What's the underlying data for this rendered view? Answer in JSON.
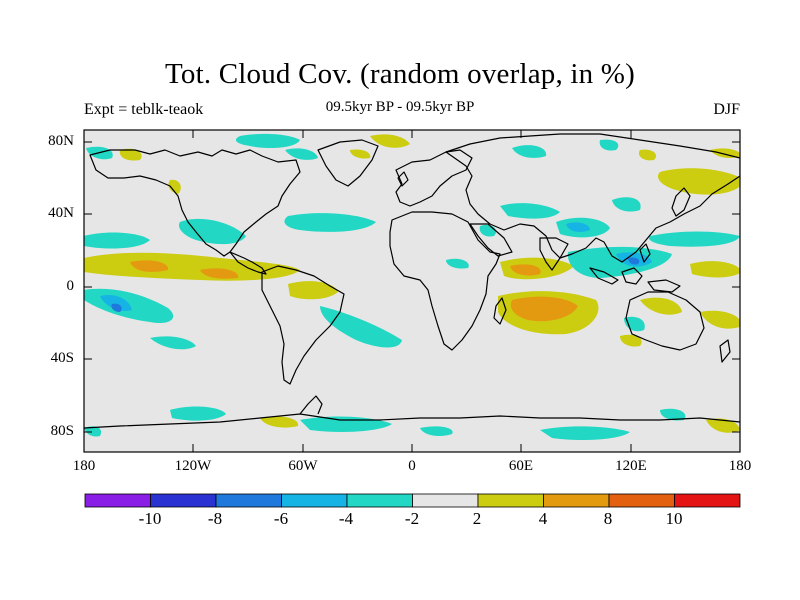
{
  "header": {
    "title": "Tot. Cloud Cov. (random overlap, in %)",
    "experiment": "Expt = teblk-teaok",
    "period": "09.5kyr BP - 09.5kyr BP",
    "season": "DJF"
  },
  "axes": {
    "lat_labels": [
      "80N",
      "40N",
      "0",
      "40S",
      "80S"
    ],
    "lon_labels": [
      "180",
      "120W",
      "60W",
      "0",
      "60E",
      "120E",
      "180"
    ]
  },
  "colorbar": {
    "colors": [
      "#8a1ee6",
      "#2a32d2",
      "#1f78dc",
      "#16b4e4",
      "#22d8c4",
      "#e6e6e6",
      "#cccc10",
      "#e49a10",
      "#e26010",
      "#e41414"
    ],
    "labels": [
      "-10",
      "-8",
      "-6",
      "-4",
      "-2",
      "2",
      "4",
      "8",
      "10"
    ]
  },
  "map": {
    "background": "#e6e6e6"
  }
}
